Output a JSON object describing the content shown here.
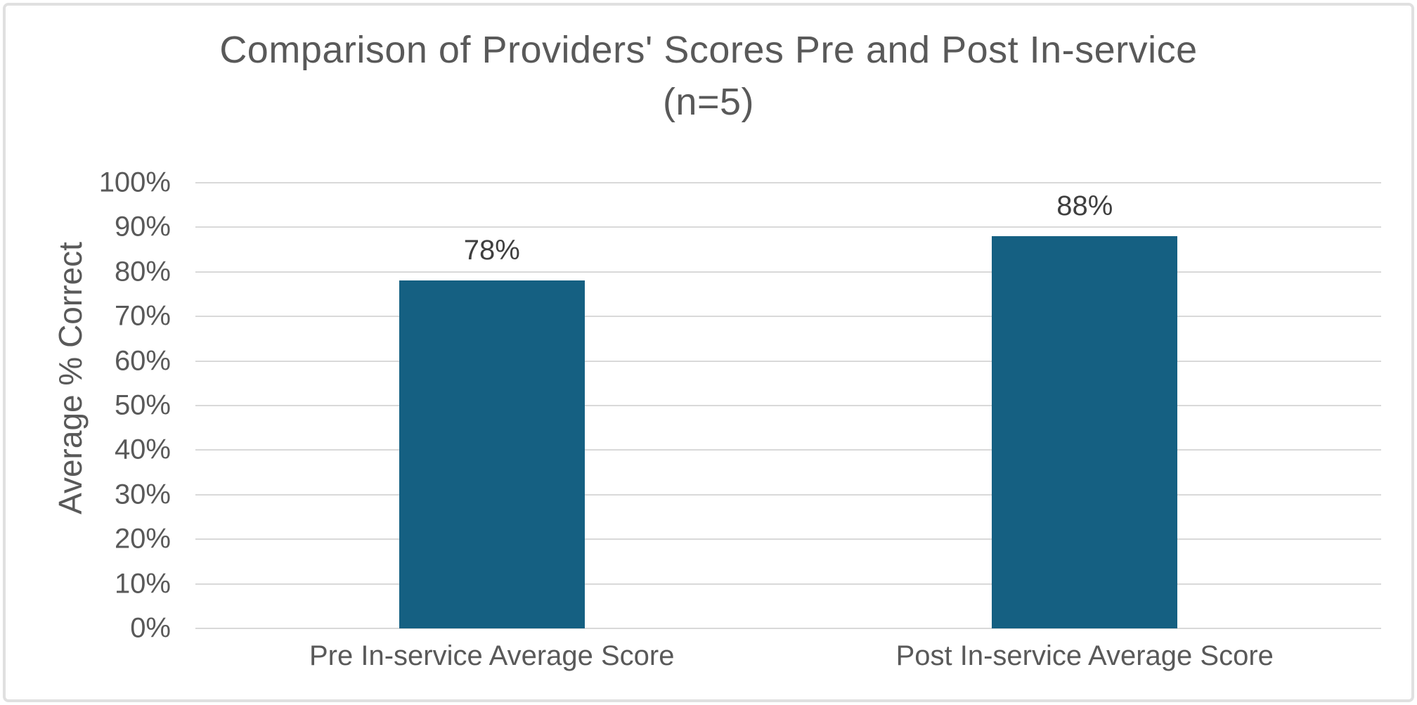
{
  "chart_data": {
    "type": "bar",
    "title": "Comparison of Providers' Scores Pre and Post In-service",
    "subtitle": "(n=5)",
    "xlabel": "",
    "ylabel": "Average % Correct",
    "categories": [
      "Pre In-service Average Score",
      "Post In-service Average Score"
    ],
    "values": [
      78,
      88
    ],
    "data_labels": [
      "78%",
      "88%"
    ],
    "yticks": [
      {
        "value": 0,
        "label": "0%"
      },
      {
        "value": 10,
        "label": "10%"
      },
      {
        "value": 20,
        "label": "20%"
      },
      {
        "value": 30,
        "label": "30%"
      },
      {
        "value": 40,
        "label": "40%"
      },
      {
        "value": 50,
        "label": "50%"
      },
      {
        "value": 60,
        "label": "60%"
      },
      {
        "value": 70,
        "label": "70%"
      },
      {
        "value": 80,
        "label": "80%"
      },
      {
        "value": 90,
        "label": "90%"
      },
      {
        "value": 100,
        "label": "100%"
      }
    ],
    "ylim": [
      0,
      100
    ],
    "grid": true,
    "legend": "none",
    "colors": {
      "bar_fill": "#156082",
      "gridline": "#D9D9D9",
      "axis_text": "#595959",
      "data_label_text": "#3F3F3F",
      "title_text": "#595959",
      "frame_border": "#E0E0E0"
    }
  }
}
